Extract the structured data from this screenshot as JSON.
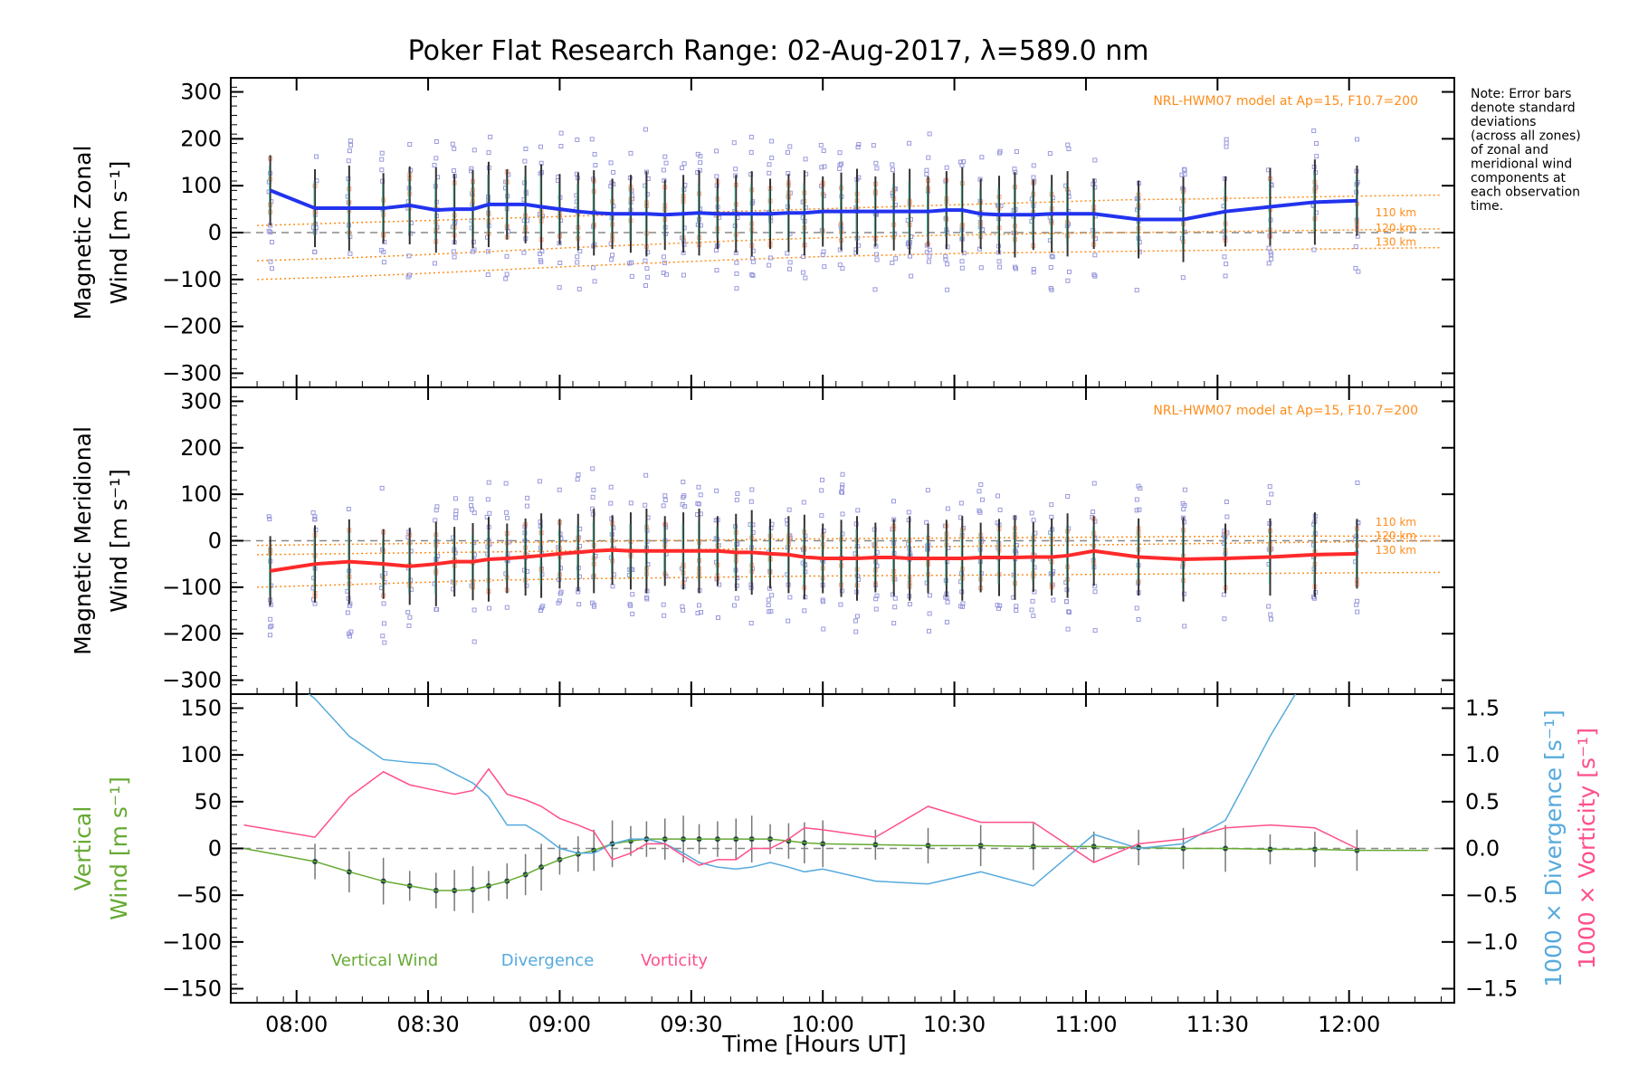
{
  "title": "Poker Flat Research Range: 02-Aug-2017, λ=589.0 nm",
  "note_lines": [
    "Note: Error bars",
    "denote standard",
    "deviations",
    "(across all zones)",
    "of zonal and",
    "meridional wind",
    "components at",
    "each observation",
    "time."
  ],
  "model_label": "NRL-HWM07 model at Ap=15, F10.7=200",
  "altitude_labels": [
    "110 km",
    "120 km",
    "130 km"
  ],
  "xlabel": "Time [Hours UT]",
  "x_ticks": [
    "08:00",
    "08:30",
    "09:00",
    "09:30",
    "10:00",
    "10:30",
    "11:00",
    "11:30",
    "12:00"
  ],
  "colors": {
    "zonal": "#2233ee",
    "meridional": "#ff2a2a",
    "vertical": "#66aa33",
    "divergence": "#55aadd",
    "vorticity": "#ff4f8a",
    "model": "#ff8c1a",
    "scatter": "#9999dd",
    "errorbar": "#333333"
  },
  "chart_data": [
    {
      "type": "line",
      "panel": "zonal",
      "ylabel_line1": "Magnetic Zonal",
      "ylabel_line2": "Wind [m s⁻¹]",
      "ylim": [
        -330,
        330
      ],
      "y_ticks": [
        "300",
        "200",
        "100",
        "0",
        "−100",
        "−200",
        "−300"
      ],
      "y_tick_values": [
        300,
        200,
        100,
        0,
        -100,
        -200,
        -300
      ],
      "x_hours": [
        7.9,
        8.07,
        8.2,
        8.33,
        8.43,
        8.53,
        8.6,
        8.67,
        8.73,
        8.8,
        8.87,
        8.93,
        9.0,
        9.07,
        9.13,
        9.2,
        9.27,
        9.33,
        9.4,
        9.47,
        9.53,
        9.6,
        9.67,
        9.73,
        9.8,
        9.87,
        9.93,
        10.0,
        10.07,
        10.13,
        10.2,
        10.27,
        10.33,
        10.4,
        10.47,
        10.53,
        10.6,
        10.67,
        10.73,
        10.8,
        10.87,
        10.93,
        11.03,
        11.2,
        11.37,
        11.53,
        11.7,
        11.87,
        12.03
      ],
      "values": [
        90,
        52,
        52,
        52,
        58,
        48,
        50,
        50,
        60,
        60,
        60,
        55,
        50,
        45,
        42,
        40,
        40,
        40,
        38,
        40,
        42,
        40,
        40,
        40,
        40,
        42,
        42,
        45,
        45,
        45,
        45,
        45,
        45,
        45,
        48,
        48,
        40,
        38,
        38,
        38,
        40,
        40,
        40,
        28,
        28,
        45,
        55,
        65,
        68
      ],
      "model_110": [
        15,
        20,
        25,
        30,
        35,
        40,
        45,
        50,
        55,
        60,
        65,
        70,
        72,
        75,
        78,
        80
      ],
      "model_120": [
        -60,
        -55,
        -48,
        -40,
        -32,
        -25,
        -18,
        -12,
        -8,
        -5,
        -2,
        0,
        2,
        4,
        6,
        8
      ],
      "model_130": [
        -100,
        -95,
        -88,
        -80,
        -72,
        -65,
        -58,
        -52,
        -48,
        -44,
        -42,
        -40,
        -38,
        -36,
        -34,
        -32
      ],
      "model_x_hours": [
        7.85,
        8.15,
        8.45,
        8.75,
        9.05,
        9.35,
        9.65,
        9.95,
        10.25,
        10.55,
        10.85,
        11.15,
        11.45,
        11.75,
        12.05,
        12.35
      ]
    },
    {
      "type": "line",
      "panel": "meridional",
      "ylabel_line1": "Magnetic Meridional",
      "ylabel_line2": "Wind [m s⁻¹]",
      "ylim": [
        -330,
        330
      ],
      "y_ticks": [
        "300",
        "200",
        "100",
        "0",
        "−100",
        "−200",
        "−300"
      ],
      "y_tick_values": [
        300,
        200,
        100,
        0,
        -100,
        -200,
        -300
      ],
      "x_hours": [
        7.9,
        8.07,
        8.2,
        8.33,
        8.43,
        8.53,
        8.6,
        8.67,
        8.73,
        8.8,
        8.87,
        8.93,
        9.0,
        9.07,
        9.13,
        9.2,
        9.27,
        9.33,
        9.4,
        9.47,
        9.53,
        9.6,
        9.67,
        9.73,
        9.8,
        9.87,
        9.93,
        10.0,
        10.07,
        10.13,
        10.2,
        10.27,
        10.33,
        10.4,
        10.47,
        10.53,
        10.6,
        10.67,
        10.73,
        10.8,
        10.87,
        10.93,
        11.03,
        11.2,
        11.37,
        11.53,
        11.7,
        11.87,
        12.03
      ],
      "values": [
        -65,
        -50,
        -45,
        -50,
        -55,
        -50,
        -45,
        -45,
        -40,
        -38,
        -35,
        -32,
        -28,
        -25,
        -22,
        -20,
        -22,
        -22,
        -22,
        -22,
        -22,
        -22,
        -25,
        -25,
        -28,
        -30,
        -35,
        -38,
        -38,
        -38,
        -36,
        -36,
        -38,
        -38,
        -38,
        -38,
        -36,
        -36,
        -36,
        -35,
        -35,
        -32,
        -22,
        -35,
        -40,
        -38,
        -35,
        -30,
        -28
      ],
      "model_110": [
        -10,
        -8,
        -6,
        -4,
        -2,
        0,
        2,
        4,
        5,
        6,
        7,
        8,
        9,
        10,
        10,
        10
      ],
      "model_120": [
        -30,
        -28,
        -26,
        -24,
        -22,
        -20,
        -18,
        -16,
        -14,
        -12,
        -10,
        -8,
        -6,
        -4,
        -2,
        0
      ],
      "model_130": [
        -100,
        -95,
        -90,
        -85,
        -82,
        -80,
        -78,
        -76,
        -75,
        -74,
        -73,
        -72,
        -71,
        -70,
        -69,
        -68
      ],
      "model_x_hours": [
        7.85,
        8.15,
        8.45,
        8.75,
        9.05,
        9.35,
        9.65,
        9.95,
        10.25,
        10.55,
        10.85,
        11.15,
        11.45,
        11.75,
        12.05,
        12.35
      ]
    },
    {
      "type": "line",
      "panel": "vertical",
      "ylabel_line1": "Vertical",
      "ylabel_line2": "Wind [m s⁻¹]",
      "ylabel_right1": "1000 × Divergence [s⁻¹]",
      "ylabel_right2": "1000 × Vorticity [s⁻¹]",
      "ylim": [
        -165,
        165
      ],
      "y_ticks": [
        "150",
        "100",
        "50",
        "0",
        "−50",
        "−100",
        "−150"
      ],
      "y_tick_values": [
        150,
        100,
        50,
        0,
        -50,
        -100,
        -150
      ],
      "y2lim": [
        -1.65,
        1.65
      ],
      "y2_ticks": [
        "1.5",
        "1.0",
        "0.5",
        "0.0",
        "−0.5",
        "−1.0",
        "−1.5"
      ],
      "y2_tick_values": [
        1.5,
        1.0,
        0.5,
        0.0,
        -0.5,
        -1.0,
        -1.5
      ],
      "legend": [
        "Vertical Wind",
        "Divergence",
        "Vorticity"
      ],
      "vertical_x_hours": [
        7.8,
        8.07,
        8.2,
        8.33,
        8.43,
        8.53,
        8.6,
        8.67,
        8.73,
        8.8,
        8.87,
        8.93,
        9.0,
        9.07,
        9.13,
        9.2,
        9.27,
        9.33,
        9.4,
        9.47,
        9.53,
        9.6,
        9.67,
        9.73,
        9.8,
        9.87,
        9.93,
        10.0,
        10.2,
        10.4,
        10.6,
        10.8,
        11.03,
        11.2,
        11.37,
        11.53,
        11.7,
        11.87,
        12.03,
        12.3
      ],
      "vertical_values": [
        0,
        -14,
        -25,
        -35,
        -40,
        -45,
        -45,
        -44,
        -40,
        -35,
        -28,
        -20,
        -12,
        -6,
        -2,
        5,
        8,
        10,
        10,
        10,
        10,
        10,
        10,
        10,
        10,
        8,
        6,
        5,
        4,
        3,
        3,
        2,
        2,
        1,
        0,
        0,
        -1,
        -1,
        -2,
        -2
      ],
      "divergence_x_hours": [
        7.8,
        8.07,
        8.2,
        8.33,
        8.43,
        8.53,
        8.6,
        8.67,
        8.73,
        8.8,
        8.87,
        8.93,
        9.0,
        9.07,
        9.13,
        9.2,
        9.27,
        9.33,
        9.4,
        9.47,
        9.53,
        9.6,
        9.67,
        9.73,
        9.8,
        9.87,
        9.93,
        10.0,
        10.2,
        10.4,
        10.6,
        10.8,
        11.03,
        11.2,
        11.37,
        11.53,
        11.7,
        11.87
      ],
      "divergence_values": [
        2.2,
        1.6,
        1.2,
        0.95,
        0.92,
        0.9,
        0.8,
        0.7,
        0.55,
        0.25,
        0.25,
        0.15,
        0.0,
        -0.05,
        -0.05,
        0.05,
        0.1,
        0.1,
        0.05,
        -0.05,
        -0.15,
        -0.2,
        -0.22,
        -0.2,
        -0.15,
        -0.2,
        -0.25,
        -0.22,
        -0.35,
        -0.38,
        -0.25,
        -0.4,
        0.15,
        0.0,
        0.05,
        0.3,
        1.2,
        2.0
      ],
      "vorticity_x_hours": [
        7.8,
        8.07,
        8.2,
        8.33,
        8.43,
        8.53,
        8.6,
        8.67,
        8.73,
        8.8,
        8.87,
        8.93,
        9.0,
        9.07,
        9.13,
        9.2,
        9.27,
        9.33,
        9.4,
        9.47,
        9.53,
        9.6,
        9.67,
        9.73,
        9.8,
        9.87,
        9.93,
        10.0,
        10.2,
        10.4,
        10.6,
        10.8,
        11.03,
        11.2,
        11.37,
        11.53,
        11.7,
        11.87,
        12.03
      ],
      "vorticity_values": [
        0.25,
        0.12,
        0.55,
        0.82,
        0.68,
        0.62,
        0.58,
        0.62,
        0.85,
        0.58,
        0.52,
        0.45,
        0.32,
        0.25,
        0.18,
        -0.12,
        -0.05,
        0.05,
        0.05,
        -0.08,
        -0.18,
        -0.12,
        -0.12,
        0.0,
        0.0,
        0.1,
        0.22,
        0.2,
        0.12,
        0.45,
        0.28,
        0.28,
        -0.15,
        0.05,
        0.1,
        0.22,
        0.25,
        0.22,
        0.0
      ]
    }
  ]
}
